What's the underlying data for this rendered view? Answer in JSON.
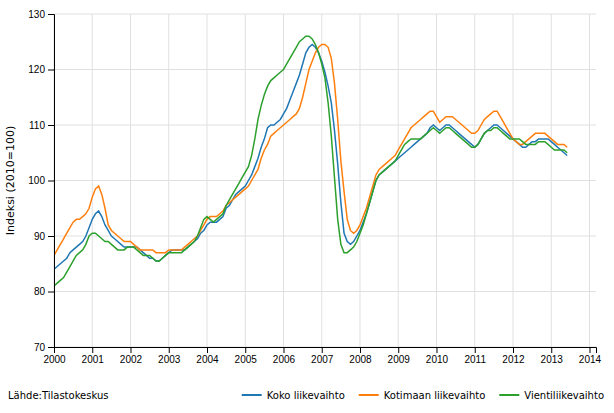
{
  "chart_data": {
    "type": "line",
    "y_label": "Indeksi (2010=100)",
    "annotations": [
      "Lähde:Tilastokeskus"
    ],
    "grid": true,
    "legend": "bottom",
    "xlim": [
      2000.0,
      2014.17
    ],
    "xticks": [
      2000,
      2001,
      2002,
      2003,
      2004,
      2005,
      2006,
      2007,
      2008,
      2009,
      2010,
      2011,
      2012,
      2013,
      2014
    ],
    "ylim": [
      70,
      130
    ],
    "yticks": [
      70,
      80,
      90,
      100,
      110,
      120,
      130
    ],
    "x": [
      2000,
      2000.0833333333333,
      2000.1666666666667,
      2000.25,
      2000.3333333333333,
      2000.4166666666667,
      2000.5,
      2000.5833333333333,
      2000.6666666666667,
      2000.75,
      2000.8333333333333,
      2000.9166666666667,
      2001,
      2001.0833333333333,
      2001.1666666666667,
      2001.25,
      2001.3333333333333,
      2001.4166666666667,
      2001.5,
      2001.5833333333333,
      2001.6666666666667,
      2001.75,
      2001.8333333333333,
      2001.9166666666667,
      2002,
      2002.0833333333333,
      2002.1666666666667,
      2002.25,
      2002.3333333333333,
      2002.4166666666667,
      2002.5,
      2002.5833333333333,
      2002.6666666666667,
      2002.75,
      2002.8333333333333,
      2002.9166666666667,
      2003,
      2003.0833333333333,
      2003.1666666666667,
      2003.25,
      2003.3333333333333,
      2003.4166666666667,
      2003.5,
      2003.5833333333333,
      2003.6666666666667,
      2003.75,
      2003.8333333333333,
      2003.9166666666667,
      2004,
      2004.0833333333333,
      2004.1666666666667,
      2004.25,
      2004.3333333333333,
      2004.4166666666667,
      2004.5,
      2004.5833333333333,
      2004.6666666666667,
      2004.75,
      2004.8333333333333,
      2004.9166666666667,
      2005,
      2005.0833333333333,
      2005.1666666666667,
      2005.25,
      2005.3333333333333,
      2005.4166666666667,
      2005.5,
      2005.5833333333333,
      2005.6666666666667,
      2005.75,
      2005.8333333333333,
      2005.9166666666667,
      2006,
      2006.0833333333333,
      2006.1666666666667,
      2006.25,
      2006.3333333333333,
      2006.4166666666667,
      2006.5,
      2006.5833333333333,
      2006.6666666666667,
      2006.75,
      2006.8333333333333,
      2006.9166666666667,
      2007,
      2007.0833333333333,
      2007.1666666666667,
      2007.25,
      2007.3333333333333,
      2007.4166666666667,
      2007.5,
      2007.5833333333333,
      2007.6666666666667,
      2007.75,
      2007.8333333333333,
      2007.9166666666667,
      2008,
      2008.0833333333333,
      2008.1666666666667,
      2008.25,
      2008.3333333333333,
      2008.4166666666667,
      2008.5,
      2008.5833333333333,
      2008.6666666666667,
      2008.75,
      2008.8333333333333,
      2008.9166666666667,
      2009,
      2009.0833333333333,
      2009.1666666666667,
      2009.25,
      2009.3333333333333,
      2009.4166666666667,
      2009.5,
      2009.5833333333333,
      2009.6666666666667,
      2009.75,
      2009.8333333333333,
      2009.9166666666667,
      2010,
      2010.0833333333333,
      2010.1666666666667,
      2010.25,
      2010.3333333333333,
      2010.4166666666667,
      2010.5,
      2010.5833333333333,
      2010.6666666666667,
      2010.75,
      2010.8333333333333,
      2010.9166666666667,
      2011,
      2011.0833333333333,
      2011.1666666666667,
      2011.25,
      2011.3333333333333,
      2011.4166666666667,
      2011.5,
      2011.5833333333333,
      2011.6666666666667,
      2011.75,
      2011.8333333333333,
      2011.9166666666667,
      2012,
      2012.0833333333333,
      2012.1666666666667,
      2012.25,
      2012.3333333333333,
      2012.4166666666667,
      2012.5,
      2012.5833333333333,
      2012.6666666666667,
      2012.75,
      2012.8333333333333,
      2012.9166666666667,
      2013,
      2013.0833333333333,
      2013.1666666666667,
      2013.25,
      2013.3333333333333,
      2013.4166666666667
    ],
    "series": [
      {
        "name": "Koko liikevaihto",
        "values": [
          84.0,
          84.5,
          85.0,
          85.5,
          86.0,
          87.0,
          87.5,
          88.0,
          88.5,
          89.0,
          90.0,
          91.5,
          93.0,
          94.0,
          94.5,
          93.5,
          92.0,
          91.0,
          90.0,
          89.5,
          89.0,
          88.5,
          88.0,
          88.0,
          88.0,
          88.0,
          88.0,
          87.5,
          87.0,
          86.5,
          86.0,
          86.0,
          85.5,
          85.5,
          86.0,
          86.5,
          87.0,
          87.5,
          87.5,
          87.5,
          87.5,
          87.5,
          88.0,
          88.5,
          89.0,
          89.5,
          90.5,
          91.0,
          92.0,
          92.5,
          92.5,
          92.5,
          93.0,
          93.5,
          95.0,
          95.5,
          96.5,
          97.5,
          98.0,
          98.5,
          99.0,
          100.0,
          101.0,
          102.5,
          104.0,
          106.0,
          107.5,
          109.5,
          110.0,
          110.0,
          110.5,
          111.0,
          112.0,
          113.0,
          114.5,
          116.0,
          117.5,
          119.0,
          121.0,
          123.0,
          124.0,
          124.5,
          124.0,
          123.0,
          121.5,
          119.5,
          117.0,
          114.0,
          109.0,
          103.0,
          96.0,
          90.5,
          89.0,
          88.5,
          89.0,
          90.0,
          91.0,
          92.5,
          94.0,
          96.0,
          98.0,
          100.0,
          101.0,
          101.5,
          102.0,
          102.5,
          103.0,
          103.5,
          104.0,
          104.5,
          105.0,
          105.5,
          106.0,
          106.5,
          107.0,
          107.5,
          108.0,
          108.5,
          109.5,
          110.0,
          109.5,
          109.0,
          109.5,
          110.0,
          110.0,
          109.5,
          109.0,
          108.5,
          108.0,
          107.5,
          107.0,
          106.5,
          106.0,
          106.5,
          107.5,
          108.5,
          109.0,
          109.5,
          110.0,
          110.0,
          109.5,
          109.0,
          108.5,
          108.0,
          107.5,
          107.0,
          106.5,
          106.0,
          106.0,
          106.5,
          107.0,
          107.0,
          107.5,
          107.5,
          107.5,
          107.5,
          107.0,
          106.5,
          106.0,
          105.5,
          105.0,
          104.5
        ]
      },
      {
        "name": "Kotimaan liikevaihto",
        "values": [
          86.5,
          87.5,
          88.5,
          89.5,
          90.5,
          91.5,
          92.5,
          93.0,
          93.0,
          93.5,
          94.0,
          95.0,
          97.0,
          98.5,
          99.0,
          97.5,
          95.0,
          92.0,
          91.0,
          90.5,
          90.0,
          89.5,
          89.0,
          89.0,
          89.0,
          88.5,
          88.0,
          87.5,
          87.5,
          87.5,
          87.5,
          87.5,
          87.0,
          87.0,
          87.0,
          87.0,
          87.5,
          87.5,
          87.5,
          87.5,
          87.5,
          88.0,
          88.5,
          89.0,
          89.5,
          90.0,
          91.0,
          92.0,
          93.0,
          93.5,
          93.5,
          93.5,
          94.0,
          94.5,
          95.5,
          96.0,
          96.5,
          97.0,
          97.5,
          98.0,
          98.5,
          99.0,
          100.0,
          101.0,
          102.0,
          104.0,
          105.5,
          106.5,
          108.0,
          108.5,
          109.0,
          109.5,
          110.0,
          110.5,
          111.0,
          111.5,
          112.0,
          113.0,
          115.0,
          117.5,
          120.0,
          121.5,
          123.0,
          124.0,
          124.5,
          124.5,
          124.0,
          122.0,
          117.5,
          111.0,
          103.5,
          98.0,
          93.0,
          91.0,
          90.5,
          91.0,
          92.0,
          93.5,
          95.0,
          97.0,
          99.0,
          101.0,
          102.0,
          102.5,
          103.0,
          103.5,
          104.0,
          104.5,
          105.5,
          106.5,
          107.5,
          108.5,
          109.5,
          110.0,
          110.5,
          111.0,
          111.5,
          112.0,
          112.5,
          112.5,
          111.5,
          110.5,
          111.0,
          111.5,
          111.5,
          111.5,
          111.0,
          110.5,
          110.0,
          109.5,
          109.0,
          108.5,
          108.5,
          109.0,
          110.0,
          111.0,
          111.5,
          112.0,
          112.5,
          112.5,
          111.5,
          110.5,
          109.5,
          108.5,
          107.5,
          107.0,
          106.5,
          106.5,
          107.0,
          107.5,
          108.0,
          108.5,
          108.5,
          108.5,
          108.5,
          108.0,
          107.5,
          107.0,
          106.5,
          106.5,
          106.5,
          106.0
        ]
      },
      {
        "name": "Vientiliikevaihto",
        "values": [
          81.0,
          81.5,
          82.0,
          82.5,
          83.5,
          84.5,
          85.5,
          86.5,
          87.0,
          87.5,
          88.5,
          90.0,
          90.5,
          90.5,
          90.0,
          89.5,
          89.0,
          89.0,
          88.5,
          88.0,
          87.5,
          87.5,
          87.5,
          88.0,
          88.0,
          88.0,
          87.5,
          87.0,
          86.5,
          86.5,
          86.5,
          86.0,
          85.5,
          85.5,
          86.0,
          86.5,
          87.0,
          87.0,
          87.0,
          87.0,
          87.0,
          87.5,
          88.0,
          88.5,
          89.0,
          90.0,
          91.5,
          93.0,
          93.5,
          93.0,
          92.5,
          93.0,
          93.5,
          94.0,
          95.5,
          96.5,
          97.5,
          98.5,
          99.5,
          100.5,
          101.5,
          102.5,
          104.5,
          107.5,
          111.0,
          113.5,
          115.5,
          117.0,
          118.0,
          118.5,
          119.0,
          119.5,
          120.0,
          121.0,
          122.0,
          123.0,
          124.0,
          125.0,
          125.5,
          126.0,
          126.0,
          125.5,
          124.5,
          123.0,
          121.0,
          118.5,
          114.0,
          108.0,
          100.5,
          93.0,
          88.5,
          87.0,
          87.0,
          87.5,
          88.0,
          89.0,
          90.5,
          92.0,
          94.0,
          96.0,
          98.0,
          100.0,
          101.0,
          101.5,
          102.0,
          102.5,
          103.0,
          103.5,
          104.5,
          105.5,
          106.5,
          107.0,
          107.5,
          107.5,
          107.5,
          107.5,
          108.0,
          108.5,
          109.0,
          109.5,
          109.0,
          108.5,
          109.0,
          109.5,
          109.5,
          109.0,
          108.5,
          108.0,
          107.5,
          107.0,
          106.5,
          106.0,
          106.0,
          106.5,
          107.5,
          108.5,
          109.0,
          109.0,
          109.5,
          109.5,
          109.0,
          108.5,
          108.0,
          107.5,
          107.5,
          107.5,
          107.5,
          107.0,
          106.5,
          106.5,
          106.5,
          106.5,
          107.0,
          107.0,
          107.0,
          106.5,
          106.0,
          105.5,
          105.5,
          105.5,
          105.5,
          105.0
        ]
      }
    ]
  }
}
